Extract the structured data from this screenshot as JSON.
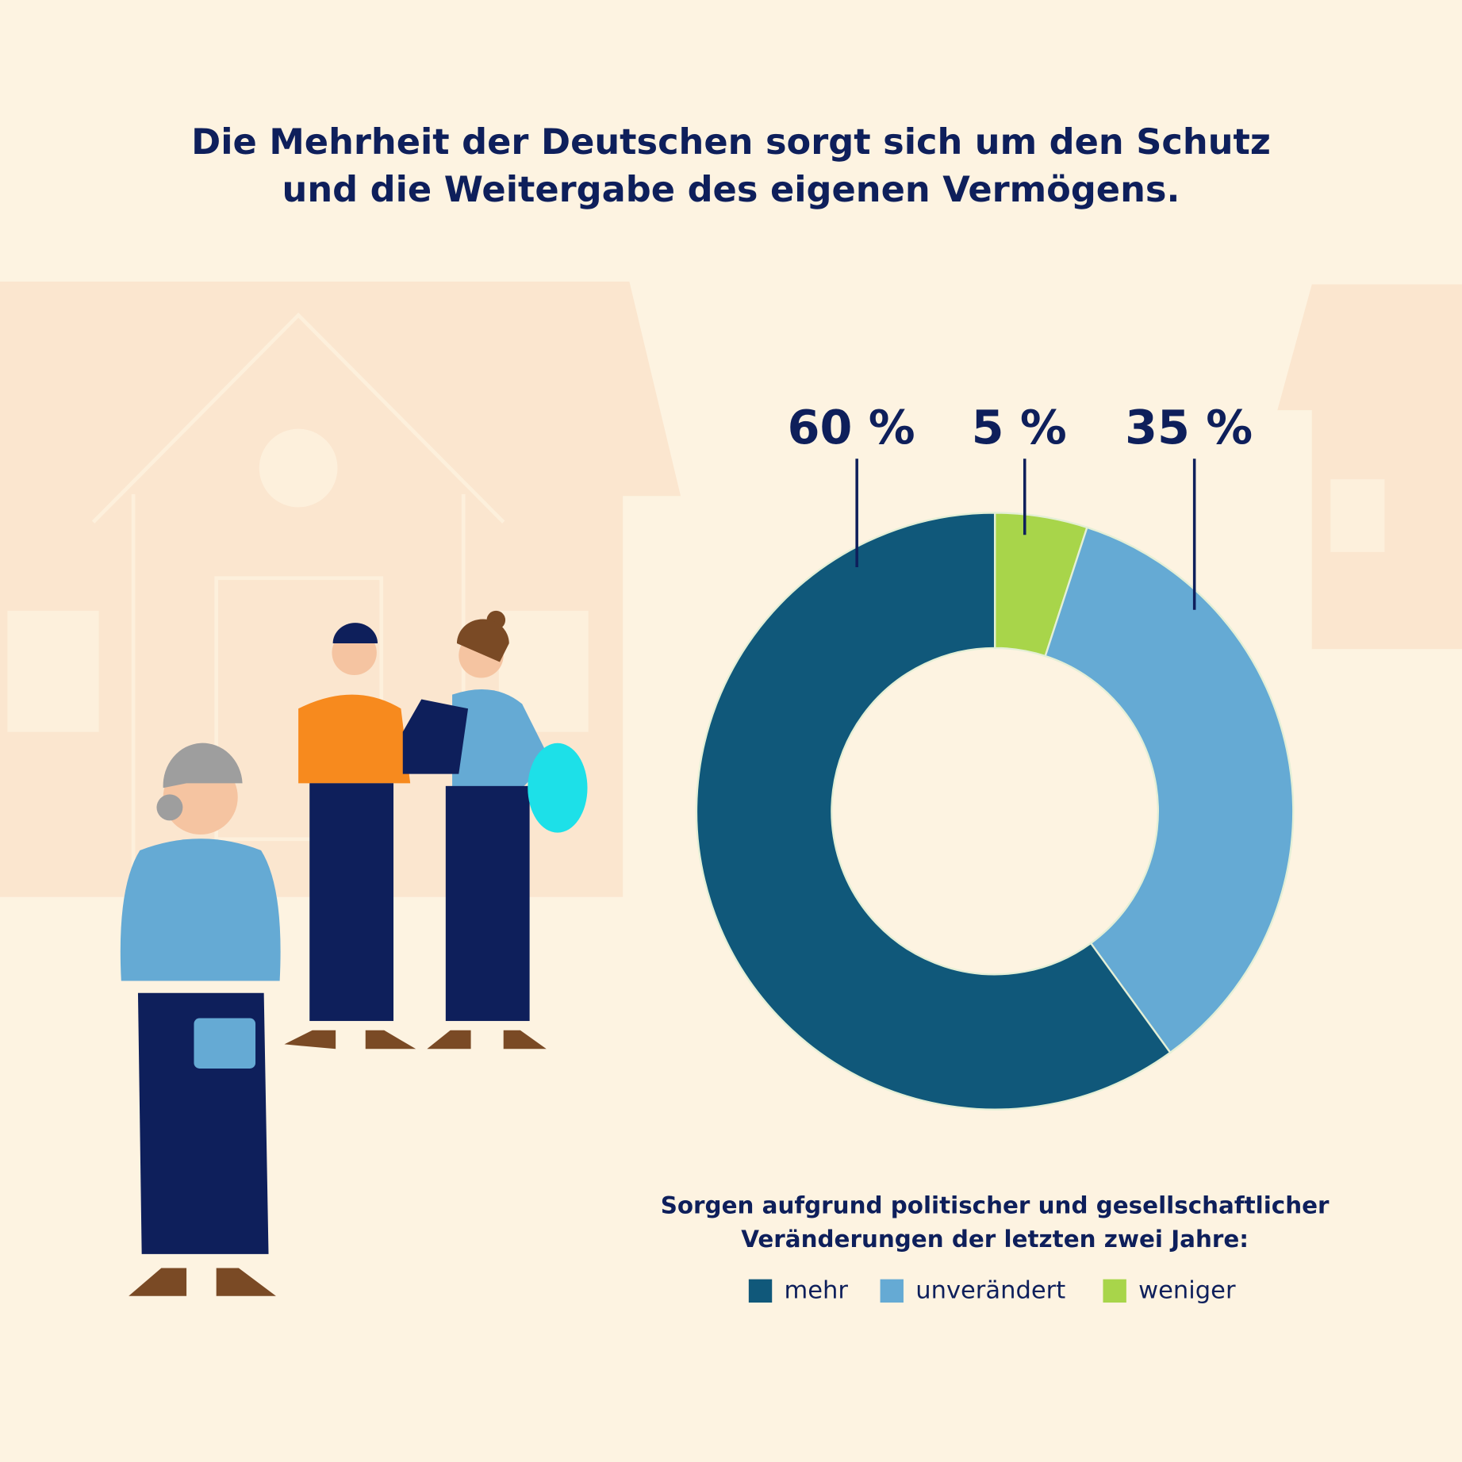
{
  "chart_data": {
    "type": "donut",
    "title": [
      "Die Mehrheit der Deutschen sorgt sich um den Schutz",
      "und die Weitergabe des eigenen Vermögens."
    ],
    "legend_title": [
      "Sorgen aufgrund politischer und gesellschaftlicher",
      "Veränderungen der letzten zwei Jahre:"
    ],
    "categories": [
      "mehr",
      "unverändert",
      "weniger"
    ],
    "values": [
      60,
      35,
      5
    ],
    "value_labels": [
      "60 %",
      "35 %",
      "5 %"
    ],
    "colors": [
      "#10587a",
      "#65aad4",
      "#a8d54a"
    ],
    "legend": "bottom"
  }
}
